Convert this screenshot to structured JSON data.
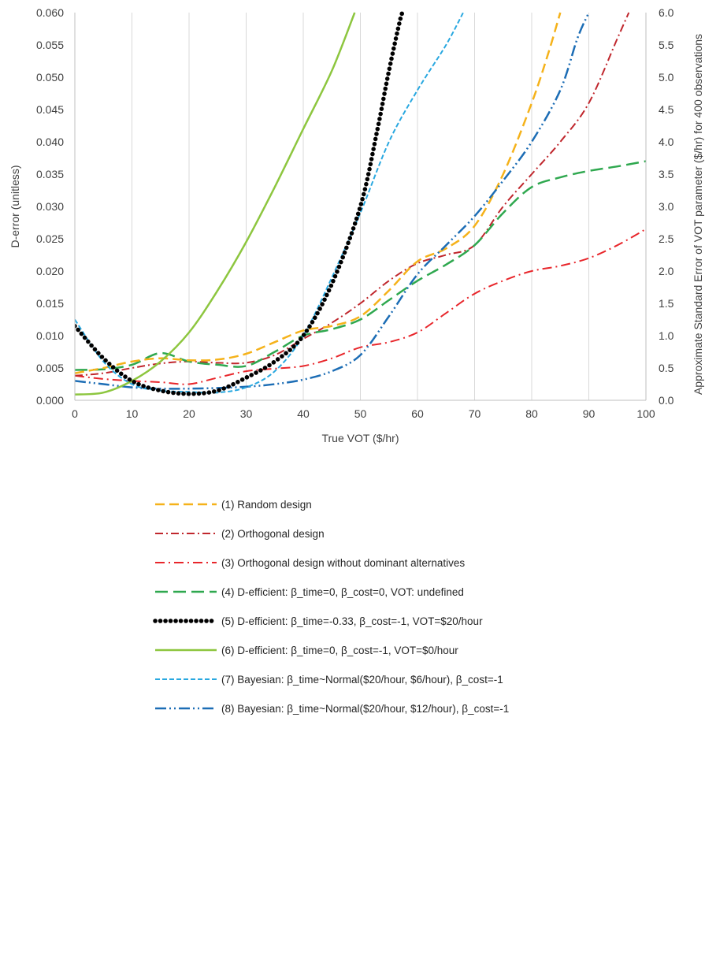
{
  "chart_data": {
    "type": "line",
    "title": "",
    "xlabel": "True VOT ($/hr)",
    "ylabel": "D-error (unitless)",
    "y2label": "Approximate Standard Error of VOT parameter ($/hr)  for 400 observations",
    "xlim": [
      0,
      100
    ],
    "ylim": [
      0,
      0.06
    ],
    "y2lim": [
      0,
      6.0
    ],
    "grid": "vertical",
    "legend_position": "bottom",
    "x_ticks": [
      "0",
      "10",
      "20",
      "30",
      "40",
      "50",
      "60",
      "70",
      "80",
      "90",
      "100"
    ],
    "y_ticks": [
      "0.000",
      "0.005",
      "0.010",
      "0.015",
      "0.020",
      "0.025",
      "0.030",
      "0.035",
      "0.040",
      "0.045",
      "0.050",
      "0.055",
      "0.060"
    ],
    "y2_ticks": [
      "0.0",
      "0.5",
      "1.0",
      "1.5",
      "2.0",
      "2.5",
      "3.0",
      "3.5",
      "4.0",
      "4.5",
      "5.0",
      "5.5",
      "6.0"
    ],
    "series": [
      {
        "name": "(1) Random design",
        "color": "#F5B21A",
        "dash": "12,6",
        "width": 2.5,
        "points": [
          [
            0,
            0.0042
          ],
          [
            5,
            0.005
          ],
          [
            10,
            0.006
          ],
          [
            15,
            0.0065
          ],
          [
            20,
            0.0062
          ],
          [
            25,
            0.0063
          ],
          [
            30,
            0.0072
          ],
          [
            35,
            0.009
          ],
          [
            40,
            0.0108
          ],
          [
            45,
            0.0115
          ],
          [
            50,
            0.013
          ],
          [
            55,
            0.017
          ],
          [
            60,
            0.0215
          ],
          [
            65,
            0.0235
          ],
          [
            70,
            0.027
          ],
          [
            75,
            0.035
          ],
          [
            80,
            0.046
          ],
          [
            83,
            0.054
          ],
          [
            85,
            0.06
          ]
        ]
      },
      {
        "name": "(2) Orthogonal design",
        "color": "#C0272D",
        "dash": "10,4,2,4",
        "width": 2.0,
        "points": [
          [
            0,
            0.0038
          ],
          [
            5,
            0.0042
          ],
          [
            10,
            0.005
          ],
          [
            15,
            0.0057
          ],
          [
            20,
            0.006
          ],
          [
            25,
            0.0058
          ],
          [
            30,
            0.0058
          ],
          [
            35,
            0.007
          ],
          [
            40,
            0.0095
          ],
          [
            45,
            0.012
          ],
          [
            50,
            0.015
          ],
          [
            55,
            0.0185
          ],
          [
            60,
            0.0212
          ],
          [
            65,
            0.0225
          ],
          [
            70,
            0.024
          ],
          [
            75,
            0.03
          ],
          [
            80,
            0.035
          ],
          [
            85,
            0.04
          ],
          [
            90,
            0.046
          ],
          [
            95,
            0.056
          ],
          [
            97,
            0.06
          ]
        ]
      },
      {
        "name": "(3) Orthogonal design without dominant alternatives",
        "color": "#E8262B",
        "dash": "12,5,2,5",
        "width": 2.0,
        "points": [
          [
            0,
            0.0038
          ],
          [
            5,
            0.0033
          ],
          [
            10,
            0.003
          ],
          [
            15,
            0.0028
          ],
          [
            20,
            0.0025
          ],
          [
            25,
            0.0035
          ],
          [
            30,
            0.0045
          ],
          [
            35,
            0.0049
          ],
          [
            40,
            0.0053
          ],
          [
            45,
            0.0065
          ],
          [
            50,
            0.0082
          ],
          [
            55,
            0.009
          ],
          [
            60,
            0.0105
          ],
          [
            65,
            0.0135
          ],
          [
            70,
            0.0165
          ],
          [
            75,
            0.0185
          ],
          [
            80,
            0.02
          ],
          [
            85,
            0.0208
          ],
          [
            90,
            0.022
          ],
          [
            95,
            0.024
          ],
          [
            100,
            0.0265
          ]
        ]
      },
      {
        "name": "(4) D-efficient: β_time=0, β_cost=0, VOT: undefined",
        "color": "#2FA84F",
        "dash": "16,7",
        "width": 2.5,
        "points": [
          [
            0,
            0.0047
          ],
          [
            5,
            0.0048
          ],
          [
            10,
            0.0055
          ],
          [
            15,
            0.0073
          ],
          [
            20,
            0.006
          ],
          [
            25,
            0.0055
          ],
          [
            30,
            0.0053
          ],
          [
            35,
            0.0075
          ],
          [
            40,
            0.01
          ],
          [
            45,
            0.011
          ],
          [
            50,
            0.0125
          ],
          [
            55,
            0.0155
          ],
          [
            60,
            0.0185
          ],
          [
            65,
            0.021
          ],
          [
            70,
            0.024
          ],
          [
            75,
            0.029
          ],
          [
            80,
            0.033
          ],
          [
            85,
            0.0345
          ],
          [
            90,
            0.0355
          ],
          [
            95,
            0.0362
          ],
          [
            100,
            0.037
          ]
        ]
      },
      {
        "name": "(5) D-efficient: β_time=-0.33, β_cost=-1, VOT=$20/hour",
        "color": "#000000",
        "dash": "0.1,6.4",
        "width": 5.5,
        "cap": "round",
        "points": [
          [
            0,
            0.0115
          ],
          [
            5,
            0.0065
          ],
          [
            10,
            0.003
          ],
          [
            15,
            0.0015
          ],
          [
            20,
            0.001
          ],
          [
            25,
            0.0015
          ],
          [
            30,
            0.0035
          ],
          [
            35,
            0.006
          ],
          [
            40,
            0.01
          ],
          [
            45,
            0.018
          ],
          [
            50,
            0.03
          ],
          [
            53,
            0.042
          ],
          [
            55,
            0.051
          ],
          [
            57,
            0.059
          ],
          [
            57.5,
            0.06
          ]
        ]
      },
      {
        "name": "(6) D-efficient: β_time=0, β_cost=-1, VOT=$0/hour",
        "color": "#8DC63F",
        "dash": "",
        "width": 2.5,
        "points": [
          [
            0,
            0.0009
          ],
          [
            5,
            0.0012
          ],
          [
            10,
            0.003
          ],
          [
            15,
            0.006
          ],
          [
            20,
            0.0105
          ],
          [
            25,
            0.017
          ],
          [
            30,
            0.0245
          ],
          [
            35,
            0.033
          ],
          [
            40,
            0.042
          ],
          [
            45,
            0.051
          ],
          [
            49,
            0.06
          ]
        ]
      },
      {
        "name": "(7) Bayesian: β_time~Normal($20/hour, $6/hour), β_cost=-1",
        "color": "#29A8E0",
        "dash": "6,3",
        "width": 2.0,
        "points": [
          [
            0,
            0.0125
          ],
          [
            5,
            0.006
          ],
          [
            10,
            0.0025
          ],
          [
            15,
            0.0015
          ],
          [
            20,
            0.0013
          ],
          [
            25,
            0.0012
          ],
          [
            30,
            0.002
          ],
          [
            35,
            0.0045
          ],
          [
            40,
            0.01
          ],
          [
            45,
            0.019
          ],
          [
            50,
            0.029
          ],
          [
            55,
            0.04
          ],
          [
            60,
            0.048
          ],
          [
            65,
            0.055
          ],
          [
            68,
            0.06
          ]
        ]
      },
      {
        "name": "(8) Bayesian: β_time~Normal($20/hour, $12/hour), β_cost=-1",
        "color": "#1C6DB5",
        "dash": "14,4,2,4,2,4",
        "width": 2.5,
        "points": [
          [
            0,
            0.003
          ],
          [
            5,
            0.0025
          ],
          [
            10,
            0.002
          ],
          [
            15,
            0.0018
          ],
          [
            20,
            0.0018
          ],
          [
            25,
            0.0019
          ],
          [
            30,
            0.0021
          ],
          [
            35,
            0.0025
          ],
          [
            40,
            0.0032
          ],
          [
            45,
            0.0045
          ],
          [
            50,
            0.007
          ],
          [
            55,
            0.013
          ],
          [
            60,
            0.0195
          ],
          [
            65,
            0.024
          ],
          [
            70,
            0.0285
          ],
          [
            75,
            0.034
          ],
          [
            80,
            0.04
          ],
          [
            85,
            0.048
          ],
          [
            88,
            0.056
          ],
          [
            90,
            0.06
          ]
        ]
      }
    ]
  }
}
